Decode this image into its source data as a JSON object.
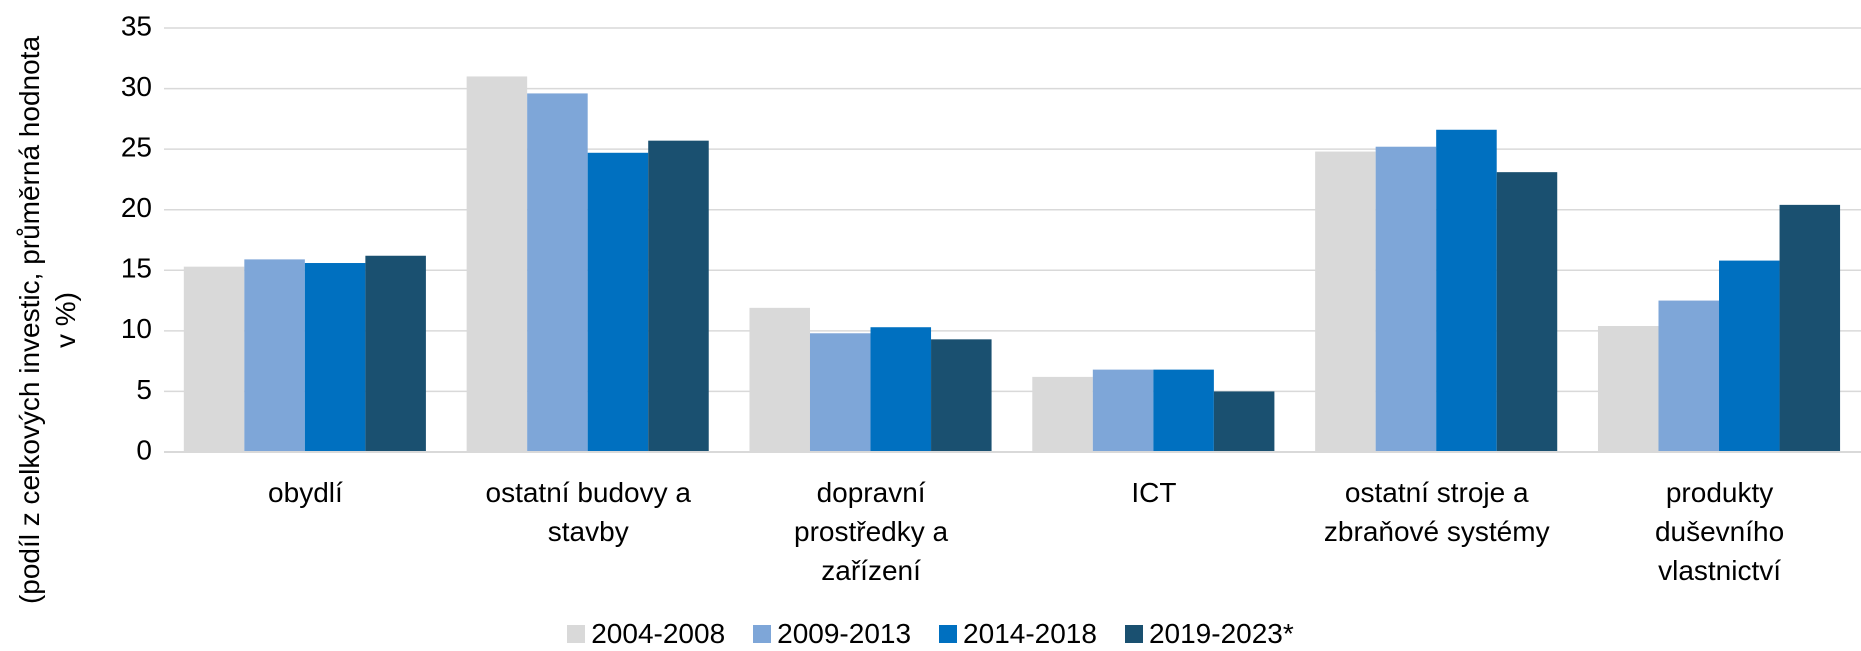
{
  "chart_data": {
    "type": "bar",
    "ylabel": "(podíl z celkových investic, průměrná hodnota v %)",
    "categories": [
      "obydlí",
      "ostatní budovy a stavby",
      "dopravní prostředky a zařízení",
      "ICT",
      "ostatní stroje a zbraňové systémy",
      "produkty duševního vlastnictví"
    ],
    "series": [
      {
        "name": "2004-2008",
        "color": "#d9d9d9",
        "values": [
          15.3,
          31.0,
          11.9,
          6.2,
          24.8,
          10.4
        ]
      },
      {
        "name": "2009-2013",
        "color": "#7ea6d8",
        "values": [
          15.9,
          29.6,
          9.8,
          6.8,
          25.2,
          12.5
        ]
      },
      {
        "name": "2014-2018",
        "color": "#0070c0",
        "values": [
          15.6,
          24.7,
          10.3,
          6.8,
          26.6,
          15.8
        ]
      },
      {
        "name": "2019-2023*",
        "color": "#1a5070",
        "values": [
          16.2,
          25.7,
          9.3,
          5.0,
          23.1,
          20.4
        ]
      }
    ],
    "ylim": [
      0,
      35
    ],
    "yticks": [
      0,
      5,
      10,
      15,
      20,
      25,
      30,
      35
    ],
    "grid": true,
    "legend": "bottom"
  }
}
